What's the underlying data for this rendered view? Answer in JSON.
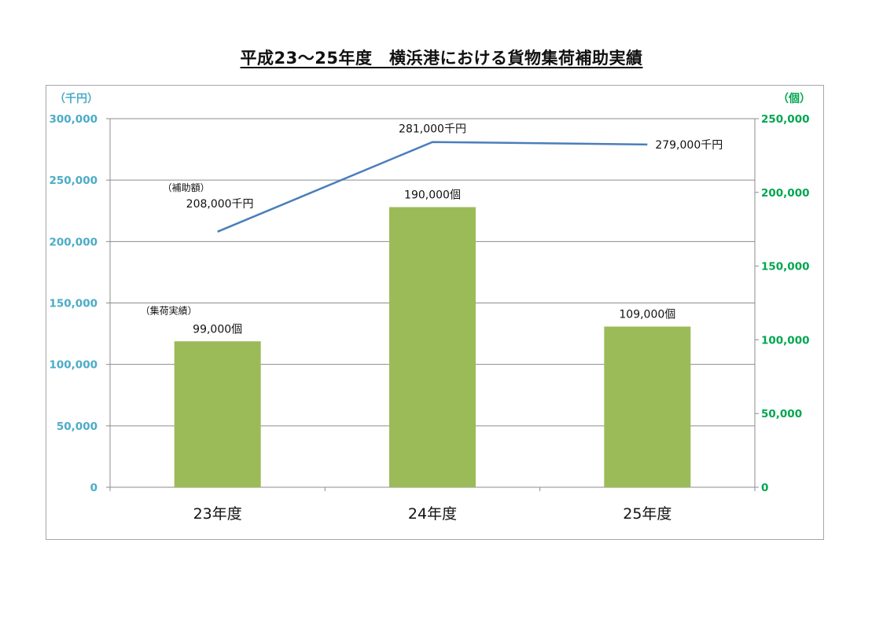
{
  "title": "平成23～25年度　横浜港における貨物集荷補助実績",
  "chart_data": {
    "type": "bar",
    "categories": [
      "23年度",
      "24年度",
      "25年度"
    ],
    "left_axis": {
      "unit_label": "（千円）",
      "ylim": [
        0,
        300000
      ],
      "ticks": [
        0,
        50000,
        100000,
        150000,
        200000,
        250000,
        300000
      ],
      "tick_labels": [
        "0",
        "50,000",
        "100,000",
        "150,000",
        "200,000",
        "250,000",
        "300,000"
      ],
      "color": "#4bacc6"
    },
    "right_axis": {
      "unit_label": "（個）",
      "ylim": [
        0,
        250000
      ],
      "ticks": [
        0,
        50000,
        100000,
        150000,
        200000,
        250000
      ],
      "tick_labels": [
        "0",
        "50,000",
        "100,000",
        "150,000",
        "200,000",
        "250,000"
      ],
      "color": "#00a650"
    },
    "series": [
      {
        "name": "（補助額）",
        "type": "line",
        "axis": "left",
        "values": [
          208000,
          281000,
          279000
        ],
        "data_labels": [
          "208,000千円",
          "281,000千円",
          "279,000千円"
        ],
        "color": "#4a7ebb"
      },
      {
        "name": "（集荷実績）",
        "type": "bar",
        "axis": "right",
        "values": [
          99000,
          190000,
          109000
        ],
        "data_labels": [
          "99,000個",
          "190,000個",
          "109,000個"
        ],
        "color": "#9bbb59"
      }
    ],
    "grid": true,
    "legend": "none"
  }
}
